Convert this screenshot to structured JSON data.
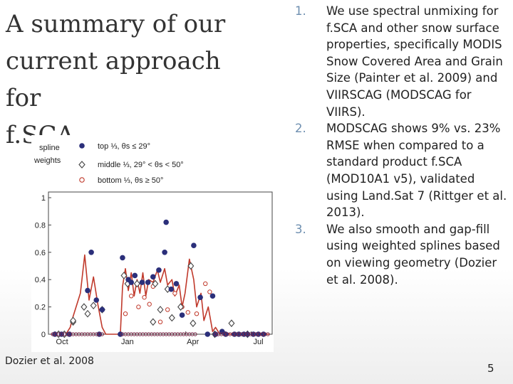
{
  "slide": {
    "title_line1": "A summary of our",
    "title_line2": "current approach for",
    "title_line3": "f.SCA",
    "caption": "Dozier et al. 2008",
    "page_number": "5"
  },
  "list": [
    {
      "num": "1.",
      "text": "We use spectral unmixing for f.SCA and other snow surface properties, specifically MODIS Snow Covered Area and Grain Size (Painter et al. 2009) and VIIRSCAG (MODSCAG for VIIRS)."
    },
    {
      "num": "2.",
      "text": "MODSCAG shows 9% vs. 23% RMSE when compared to a standard product f.SCA (MOD10A1 v5), validated using Land.Sat 7 (Rittger et al. 2013)."
    },
    {
      "num": "3.",
      "text": "We also smooth and gap-fill using weighted splines based on viewing geometry (Dozier et al. 2008)."
    }
  ],
  "chart_data": {
    "type": "scatter",
    "legend_title_line1": "spline",
    "legend_title_line2": "weights",
    "legend_position": "top",
    "legend": [
      "top ⅓, θs ≤ 29°",
      "middle ⅓, 29° < θs < 50°",
      "bottom ⅓, θs ≥ 50°"
    ],
    "x_ticks": [
      "Oct",
      "Jan",
      "Apr",
      "Jul"
    ],
    "y_ticks": [
      "0",
      "0.2",
      "0.4",
      "0.6",
      "0.8",
      "1"
    ],
    "xlim": [
      0,
      300
    ],
    "ylim": [
      0,
      1
    ],
    "colors": {
      "top": "#2b2f7a",
      "middle": "#444444",
      "bottom": "#c0392b",
      "spline": "#c0392b"
    },
    "series": [
      {
        "name": "top ⅓, θs ≤ 29°",
        "marker": "filled-circle",
        "x": [
          5,
          14,
          25,
          50,
          55,
          62,
          66,
          70,
          95,
          98,
          106,
          110,
          115,
          125,
          133,
          140,
          148,
          156,
          158,
          165,
          172,
          180,
          196,
          205,
          215,
          222,
          226,
          235,
          240,
          252,
          258,
          265,
          270,
          278,
          285,
          292
        ],
        "y": [
          0,
          0,
          0,
          0.32,
          0.6,
          0.25,
          0,
          0.18,
          0,
          0.56,
          0.4,
          0.38,
          0.43,
          0.38,
          0.38,
          0.42,
          0.47,
          0.6,
          0.82,
          0.33,
          0.37,
          0.14,
          0.65,
          0.27,
          0,
          0.28,
          0,
          0.02,
          0,
          0,
          0,
          0,
          0,
          0,
          0,
          0
        ]
      },
      {
        "name": "middle ⅓, 29° < θs < 50°",
        "marker": "open-diamond",
        "x": [
          10,
          18,
          30,
          45,
          58,
          70,
          100,
          118,
          140,
          150,
          166,
          178,
          192,
          225,
          248,
          270
        ],
        "y": [
          0,
          0,
          0.09,
          0.2,
          0.21,
          0.18,
          0.43,
          0.37,
          0.09,
          0.18,
          0.12,
          0.2,
          0.5,
          0,
          0.08,
          0
        ],
        "extra_points": [
          [
            30,
            0.1
          ],
          [
            50,
            0.15
          ],
          [
            105,
            0.37
          ],
          [
            143,
            0.37
          ],
          [
            160,
            0.33
          ],
          [
            195,
            0.08
          ]
        ]
      },
      {
        "name": "bottom ⅓, θs ≥ 50°",
        "marker": "open-circle",
        "x": [
          102,
          110,
          120,
          128,
          135,
          140,
          150,
          160,
          170,
          180,
          188,
          200,
          212,
          218
        ],
        "y": [
          0.15,
          0.28,
          0.2,
          0.27,
          0.22,
          0.35,
          0.09,
          0.18,
          0.3,
          0.2,
          0.16,
          0.15,
          0.37,
          0.31
        ]
      },
      {
        "name": "",
        "marker": "line",
        "x": [
          0,
          10,
          20,
          26,
          30,
          40,
          46,
          52,
          58,
          64,
          70,
          75,
          85,
          95,
          98,
          102,
          106,
          110,
          114,
          118,
          122,
          126,
          130,
          134,
          140,
          146,
          150,
          156,
          160,
          166,
          170,
          176,
          180,
          184,
          190,
          196,
          200,
          206,
          210,
          216,
          222,
          226,
          232,
          238,
          246,
          258,
          270,
          282,
          300
        ],
        "y": [
          0,
          0,
          0,
          0.05,
          0.13,
          0.3,
          0.58,
          0.25,
          0.42,
          0.22,
          0.05,
          0,
          0,
          0,
          0.35,
          0.48,
          0.32,
          0.45,
          0.28,
          0.4,
          0.3,
          0.45,
          0.28,
          0.4,
          0.38,
          0.47,
          0.38,
          0.48,
          0.36,
          0.4,
          0.28,
          0.36,
          0.2,
          0.3,
          0.55,
          0.4,
          0.2,
          0.3,
          0.1,
          0.2,
          0.02,
          0.05,
          0,
          0.02,
          0,
          0,
          0,
          0,
          0
        ]
      }
    ]
  }
}
